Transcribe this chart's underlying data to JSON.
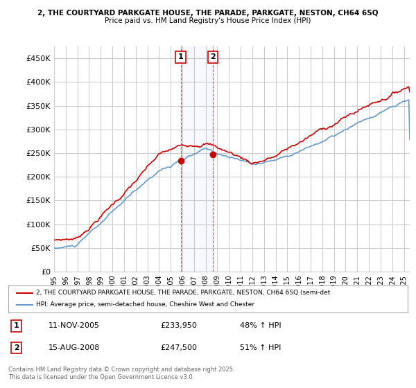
{
  "title1": "2, THE COURTYARD PARKGATE HOUSE, THE PARADE, PARKGATE, NESTON, CH64 6SQ",
  "title2": "Price paid vs. HM Land Registry's House Price Index (HPI)",
  "ylabel_ticks": [
    "£0",
    "£50K",
    "£100K",
    "£150K",
    "£200K",
    "£250K",
    "£300K",
    "£350K",
    "£400K",
    "£450K"
  ],
  "ytick_values": [
    0,
    50000,
    100000,
    150000,
    200000,
    250000,
    300000,
    350000,
    400000,
    450000
  ],
  "xlim_start": 1995.0,
  "xlim_end": 2025.5,
  "ylim": [
    0,
    475000
  ],
  "legend_line1": "2, THE COURTYARD PARKGATE HOUSE, THE PARADE, PARKGATE, NESTON, CH64 6SQ (semi-det",
  "legend_line2": "HPI: Average price, semi-detached house, Cheshire West and Chester",
  "sale1_date": 2005.86,
  "sale1_price": 233950,
  "sale1_label": "1",
  "sale2_date": 2008.62,
  "sale2_price": 247500,
  "sale2_label": "2",
  "annotation1": "1    11-NOV-2005    £233,950    48% ↑ HPI",
  "annotation2": "2    15-AUG-2008    £247,500    51% ↑ HPI",
  "footer": "Contains HM Land Registry data © Crown copyright and database right 2025.\nThis data is licensed under the Open Government Licence v3.0.",
  "property_color": "#cc0000",
  "hpi_color": "#6699cc",
  "background_color": "#ffffff",
  "grid_color": "#cccccc"
}
